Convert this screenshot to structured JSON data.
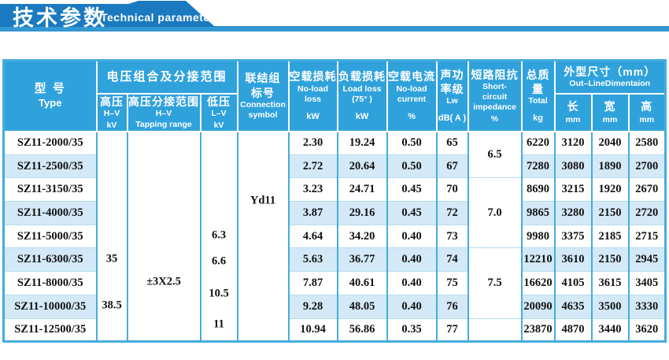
{
  "banner": {
    "title_cn": "技术参数",
    "title_en": "Technical parameter"
  },
  "colors": {
    "banner_bar": "#1a79bf",
    "banner_strip": "#3397d1",
    "header_bg": "#2fa2dc",
    "stripe": "#d3e9f7",
    "border_strong": "#45acdf",
    "border_light": "#b5ddf1",
    "header_text": "#ffffff",
    "body_text": "#111111"
  },
  "table": {
    "header": {
      "type": {
        "cn": "型  号",
        "en": "Type"
      },
      "voltage_group": "电压组合及分接范围",
      "hv": {
        "cn": "高压",
        "en": "H–V",
        "unit": "kV"
      },
      "tapping": {
        "cn": "高压分接范围",
        "en": "H–V",
        "en2": "Tapping range"
      },
      "lv": {
        "cn": "低压",
        "en": "L–V",
        "unit": "kV"
      },
      "connection": {
        "cn1": "联结组",
        "cn2": "标号",
        "en1": "Connection",
        "en2": "symbol"
      },
      "noload_loss": {
        "cn": "空载损耗",
        "en1": "No-load",
        "en2": "loss",
        "unit": "kW"
      },
      "load_loss": {
        "cn": "负载损耗",
        "en1": "Load loss",
        "en2": "(75°  )",
        "unit": "kW"
      },
      "noload_current": {
        "cn": "空载电流",
        "en1": "No-load",
        "en2": "current",
        "unit": "%"
      },
      "sound": {
        "cn1": "声功",
        "cn2": "率级",
        "en": "Lw",
        "unit": "dB( A )"
      },
      "impedance": {
        "cn": "短路阻抗",
        "en1": "Short-",
        "en2": "circuit",
        "en3": "impedance",
        "unit": "%"
      },
      "total": {
        "cn1": "总质",
        "cn2": "量",
        "en": "Total",
        "unit": "kg"
      },
      "dimensions_group": {
        "cn": "外型尺寸（mm）",
        "en": "Out–LineDimentaion"
      },
      "length": {
        "cn": "长",
        "unit": "mm"
      },
      "width": {
        "cn": "宽",
        "unit": "mm"
      },
      "height": {
        "cn": "高",
        "unit": "mm"
      }
    },
    "merged_columns": {
      "hv": [
        {
          "text": "35",
          "top_pct": 61
        },
        {
          "text": "38.5",
          "top_pct": 83.2
        }
      ],
      "tapping": [
        {
          "text": "±3X2.5",
          "top_pct": 72
        }
      ],
      "lv": [
        {
          "text": "6.3",
          "top_pct": 49.5
        },
        {
          "text": "6.6",
          "top_pct": 62.2
        },
        {
          "text": "10.5",
          "top_pct": 77.5
        },
        {
          "text": "11",
          "top_pct": 92.5
        }
      ],
      "connection": [
        {
          "text": "Yd11",
          "top_pct": 33
        }
      ]
    },
    "impedance_cells": [
      {
        "value": "6.5",
        "rows": 2
      },
      {
        "value": "7.0",
        "rows": 3
      },
      {
        "value": "7.5",
        "rows": 3
      },
      {
        "value": "",
        "rows": 1
      }
    ],
    "rows": [
      [
        "SZ11-2000/35",
        "2.30",
        "19.24",
        "0.50",
        "65",
        "6220",
        "3120",
        "2040",
        "2580"
      ],
      [
        "SZ11-2500/35",
        "2.72",
        "20.64",
        "0.50",
        "67",
        "7280",
        "3080",
        "1890",
        "2700"
      ],
      [
        "SZ11-3150/35",
        "3.23",
        "24.71",
        "0.45",
        "70",
        "8690",
        "3215",
        "1920",
        "2670"
      ],
      [
        "SZ11-4000/35",
        "3.87",
        "29.16",
        "0.45",
        "72",
        "9865",
        "3280",
        "2150",
        "2720"
      ],
      [
        "SZ11-5000/35",
        "4.64",
        "34.20",
        "0.40",
        "73",
        "9980",
        "3375",
        "2185",
        "2715"
      ],
      [
        "SZ11-6300/35",
        "5.63",
        "36.77",
        "0.40",
        "74",
        "12210",
        "3610",
        "2150",
        "2945"
      ],
      [
        "SZ11-8000/35",
        "7.87",
        "40.61",
        "0.40",
        "75",
        "16620",
        "4105",
        "3615",
        "3405"
      ],
      [
        "SZ11-10000/35",
        "9.28",
        "48.05",
        "0.40",
        "76",
        "20090",
        "4635",
        "3500",
        "3330"
      ],
      [
        "SZ11-12500/35",
        "10.94",
        "56.86",
        "0.35",
        "77",
        "23870",
        "4870",
        "3440",
        "3620"
      ]
    ]
  }
}
